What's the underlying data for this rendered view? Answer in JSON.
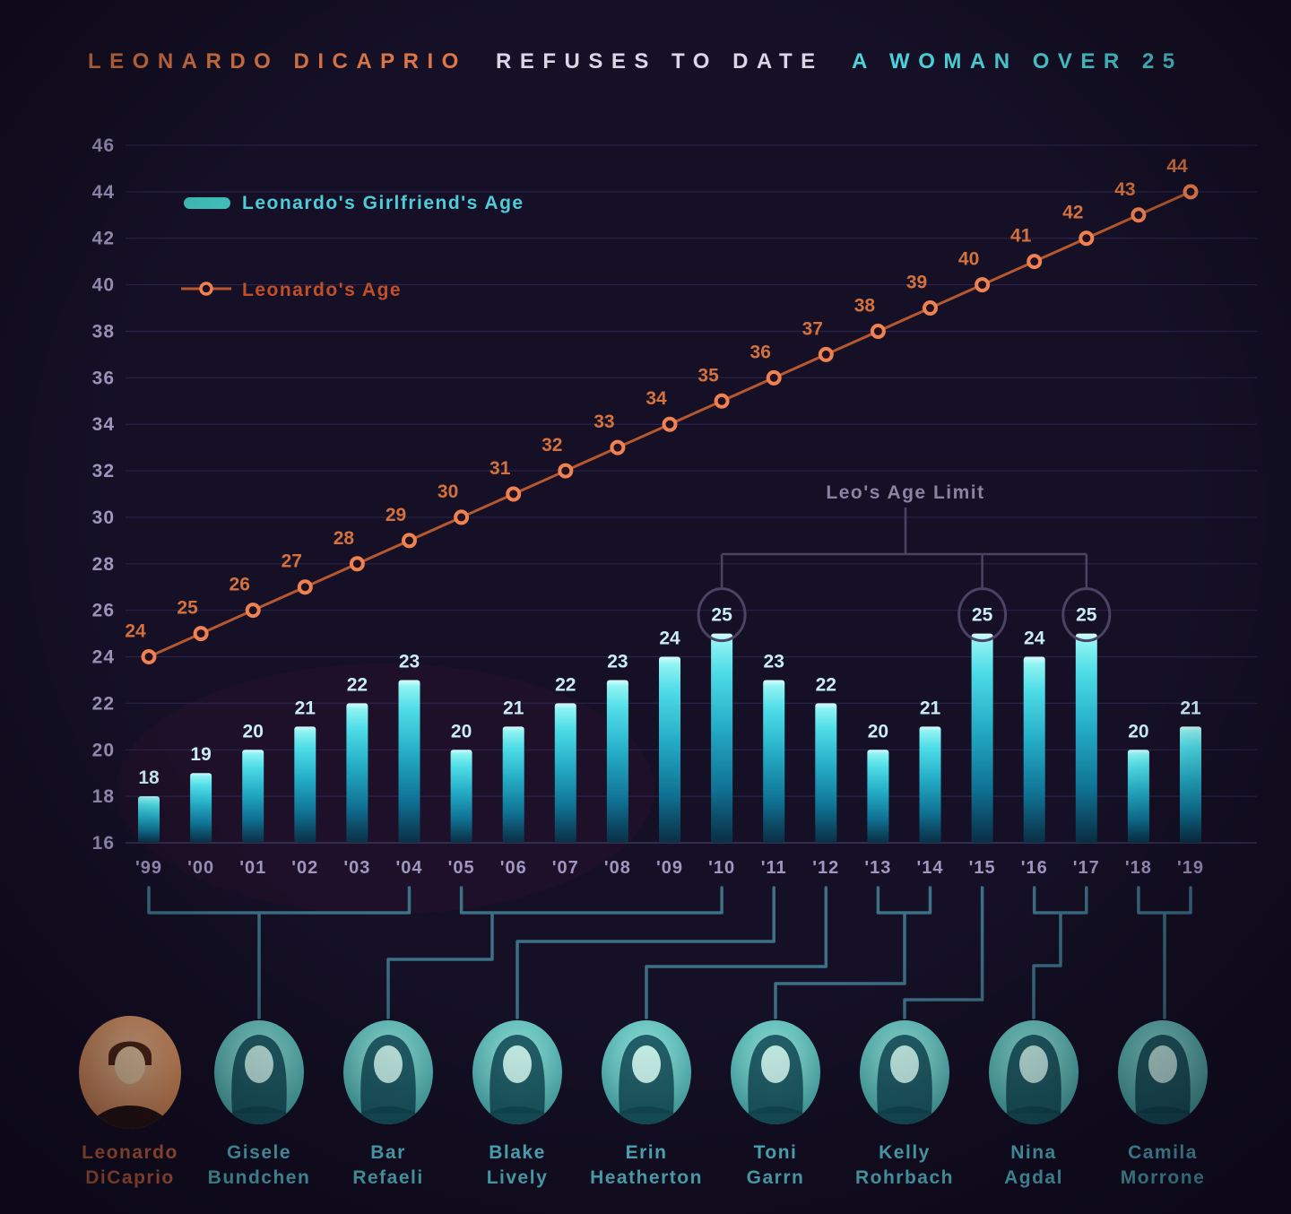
{
  "title": {
    "part1": "LEONARDO DICAPRIO",
    "part2": "REFUSES TO DATE",
    "part3": "A WOMAN OVER 25"
  },
  "legend": [
    {
      "label": "Leonardo's Girlfriend's Age",
      "type": "bar",
      "color": "#3fbdb8"
    },
    {
      "label": "Leonardo's Age",
      "type": "line",
      "color": "#ef8252"
    }
  ],
  "annotation": {
    "label": "Leo's Age Limit",
    "circled_years": [
      "'10",
      "'15",
      "'17"
    ],
    "circled_value": 25
  },
  "chart_data": {
    "type": "bar+line",
    "categories": [
      "'99",
      "'00",
      "'01",
      "'02",
      "'03",
      "'04",
      "'05",
      "'06",
      "'07",
      "'08",
      "'09",
      "'10",
      "'11",
      "'12",
      "'13",
      "'14",
      "'15",
      "'16",
      "'17",
      "'18",
      "'19"
    ],
    "series": [
      {
        "name": "Leonardo's Girlfriend's Age",
        "type": "bar",
        "values": [
          18,
          19,
          20,
          21,
          22,
          23,
          20,
          21,
          22,
          23,
          24,
          25,
          23,
          22,
          20,
          21,
          25,
          24,
          25,
          20,
          21
        ]
      },
      {
        "name": "Leonardo's Age",
        "type": "line",
        "values": [
          24,
          25,
          26,
          27,
          28,
          29,
          30,
          31,
          32,
          33,
          34,
          35,
          36,
          37,
          38,
          39,
          40,
          41,
          42,
          43,
          44
        ]
      }
    ],
    "ylim": [
      16,
      46
    ],
    "ytick_step": 2,
    "grid": true,
    "legend_position": "top-left"
  },
  "people": [
    {
      "name_lines": [
        "Leonardo",
        "DiCaprio"
      ],
      "role": "leo",
      "years": null
    },
    {
      "name_lines": [
        "Gisele",
        "Bundchen"
      ],
      "role": "girlfriend",
      "years": [
        "'99",
        "'04"
      ],
      "span": [
        0,
        5
      ]
    },
    {
      "name_lines": [
        "Bar",
        "Refaeli"
      ],
      "role": "girlfriend",
      "years": [
        "'05",
        "'10"
      ],
      "span": [
        6,
        11
      ]
    },
    {
      "name_lines": [
        "Blake",
        "Lively"
      ],
      "role": "girlfriend",
      "years": [
        "'11"
      ],
      "span": [
        12,
        12
      ]
    },
    {
      "name_lines": [
        "Erin",
        "Heatherton"
      ],
      "role": "girlfriend",
      "years": [
        "'12"
      ],
      "span": [
        13,
        13
      ]
    },
    {
      "name_lines": [
        "Toni",
        "Garrn"
      ],
      "role": "girlfriend",
      "years": [
        "'13",
        "'14"
      ],
      "span": [
        14,
        15
      ]
    },
    {
      "name_lines": [
        "Kelly",
        "Rohrbach"
      ],
      "role": "girlfriend",
      "years": [
        "'15"
      ],
      "span": [
        16,
        16
      ]
    },
    {
      "name_lines": [
        "Nina",
        "Agdal"
      ],
      "role": "girlfriend",
      "years": [
        "'16",
        "'17"
      ],
      "span": [
        17,
        18
      ]
    },
    {
      "name_lines": [
        "Camila",
        "Morrone"
      ],
      "role": "girlfriend",
      "years": [
        "'18",
        "'19"
      ],
      "span": [
        19,
        20
      ]
    }
  ],
  "colors": {
    "background": "#151026",
    "grid": "#29224a",
    "axis_line": "#3b3560",
    "axis_label": "#9f97bf",
    "bar_top": "#a9f6f4",
    "bar_mid": "#2cb7cd",
    "bar_bottom": "#0a3a50",
    "bar_label": "#c9edf3",
    "line": "#b5582f",
    "marker_ring": "#f08252",
    "marker_fill": "#20101f",
    "line_label": "#d4713d",
    "legend_bar_text": "#4ecdd8",
    "legend_line_text": "#c24f28",
    "annotation_text": "#8a83a2",
    "annotation_stroke": "#4a4362",
    "connector": "#3d7186",
    "name_orange": "#df6e41",
    "name_cyan": "#5dcad9",
    "title_orange": "#dd7747",
    "title_white": "#d9d6e6",
    "title_cyan": "#4dd3dc",
    "photo_bg_teal_light": "#8fe9e0",
    "photo_bg_teal_dark": "#2f9a9d",
    "photo_bg_orange_light": "#f6bd92",
    "photo_bg_orange_dark": "#dc8146",
    "silhouette_teal": "#124c59",
    "silhouette_orange": "#55281a"
  }
}
